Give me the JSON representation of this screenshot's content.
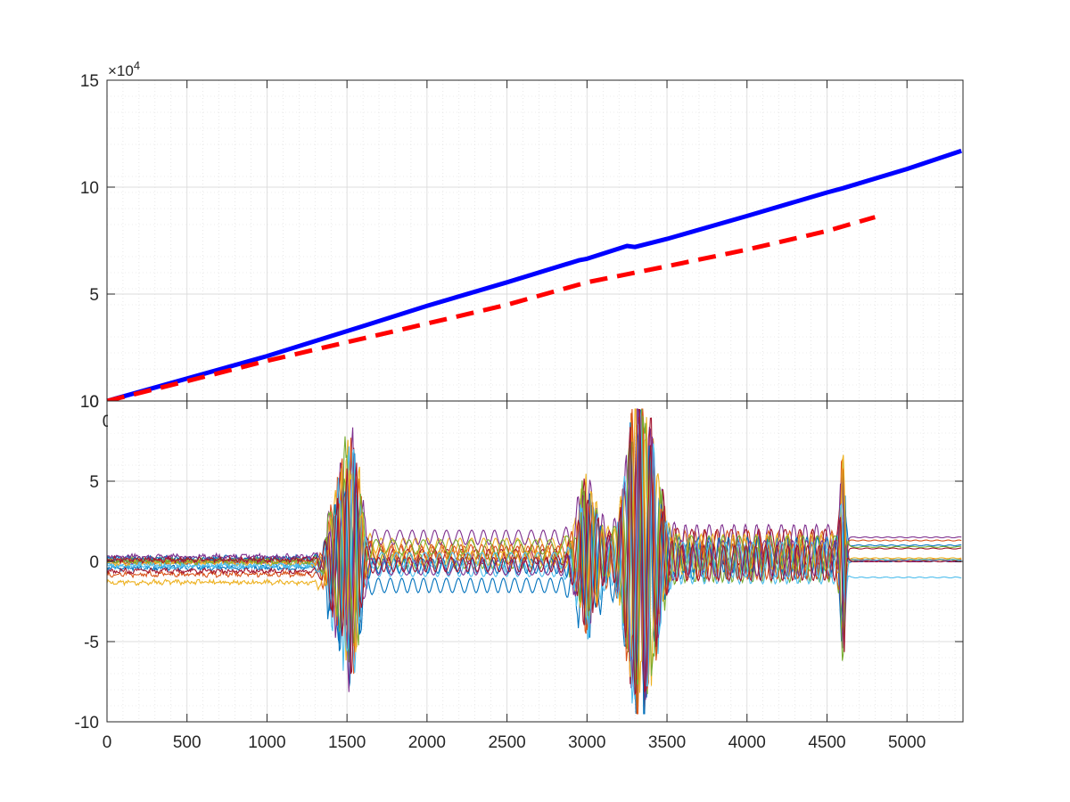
{
  "figure": {
    "background": "#ffffff"
  },
  "chart_data": [
    {
      "type": "line",
      "xlim": [
        0,
        5350
      ],
      "ylim": [
        0,
        150000
      ],
      "yticks": [
        0,
        50000,
        100000,
        150000
      ],
      "ytick_labels": [
        "0",
        "5",
        "10",
        "15"
      ],
      "y_exponent_label": "×10",
      "y_exponent_power": "4",
      "xtick_labels_visible": [
        "0"
      ],
      "grid": true,
      "minor_grid": true,
      "series": [
        {
          "color": "#0000ff",
          "style": "solid",
          "width": 5,
          "x": [
            0,
            500,
            1000,
            1450,
            1600,
            2000,
            2500,
            2950,
            3000,
            3250,
            3300,
            3500,
            4000,
            4500,
            4600,
            5000,
            5340
          ],
          "y": [
            0,
            10500,
            21000,
            31500,
            35000,
            44500,
            55500,
            65800,
            66500,
            72500,
            72000,
            75800,
            86500,
            97500,
            99500,
            108500,
            117000
          ]
        },
        {
          "color": "#ff0000",
          "style": "dashed",
          "width": 5,
          "x": [
            0,
            500,
            1000,
            1500,
            2000,
            2500,
            3000,
            3500,
            4000,
            4500,
            4800
          ],
          "y": [
            0,
            9300,
            18800,
            27500,
            36200,
            45000,
            55500,
            63000,
            70800,
            79500,
            86000
          ]
        }
      ]
    },
    {
      "type": "line",
      "xlim": [
        0,
        5350
      ],
      "ylim": [
        -10,
        10
      ],
      "yticks": [
        -10,
        -5,
        0,
        5,
        10
      ],
      "ytick_labels": [
        "-10",
        "-5",
        "0",
        "5",
        "10"
      ],
      "xticks": [
        0,
        500,
        1000,
        1500,
        2000,
        2500,
        3000,
        3500,
        4000,
        4500,
        5000
      ],
      "xtick_labels": [
        "0",
        "500",
        "1000",
        "1500",
        "2000",
        "2500",
        "3000",
        "3500",
        "4000",
        "4500",
        "5000"
      ],
      "grid": true,
      "minor_grid": true,
      "series_colors": [
        "#0072bd",
        "#d95319",
        "#edb120",
        "#7e2f8e",
        "#77ac30",
        "#4dbeee",
        "#a2142f",
        "#0072bd",
        "#d95319",
        "#edb120",
        "#7e2f8e",
        "#77ac30",
        "#4dbeee",
        "#a2142f"
      ],
      "series_offsets": [
        {
          "seg": [
            -0.4,
            -1.5,
            -1.0,
            0.0,
            1.0
          ],
          "end": 1.0
        },
        {
          "seg": [
            -0.8,
            0.5,
            0.3,
            0.8,
            1.3
          ],
          "end": 1.3
        },
        {
          "seg": [
            -1.3,
            1.0,
            0.8,
            0.3,
            0.1
          ],
          "end": 0.1
        },
        {
          "seg": [
            0.0,
            1.5,
            1.0,
            1.2,
            1.5
          ],
          "end": 1.5
        },
        {
          "seg": [
            0.1,
            0.0,
            0.3,
            -0.2,
            0.1
          ],
          "end": 0.1
        },
        {
          "seg": [
            -0.2,
            -0.5,
            0.0,
            -0.3,
            -1.0
          ],
          "end": -1.0
        },
        {
          "seg": [
            -0.6,
            0.3,
            0.5,
            0.9,
            0.8
          ],
          "end": 0.8
        },
        {
          "seg": [
            0.2,
            -0.3,
            0.1,
            0.4,
            0.0
          ],
          "end": 0.0
        },
        {
          "seg": [
            0.0,
            0.6,
            -0.2,
            0.0,
            0.1
          ],
          "end": 0.1
        },
        {
          "seg": [
            -0.1,
            0.2,
            0.4,
            0.6,
            0.2
          ],
          "end": 0.2
        },
        {
          "seg": [
            0.3,
            -0.4,
            0.2,
            0.2,
            0.0
          ],
          "end": 0.0
        },
        {
          "seg": [
            0.0,
            0.9,
            0.6,
            0.5,
            0.9
          ],
          "end": 0.9
        },
        {
          "seg": [
            -0.3,
            0.1,
            -0.1,
            0.1,
            0.1
          ],
          "end": 0.1
        },
        {
          "seg": [
            0.1,
            -0.2,
            0.3,
            -0.1,
            0.0
          ],
          "end": 0.0
        }
      ],
      "bursts": [
        {
          "x": 1450,
          "amp": 4.5,
          "width": 80
        },
        {
          "x": 1540,
          "amp": 6.5,
          "width": 60
        },
        {
          "x": 3000,
          "amp": 4.0,
          "width": 80
        },
        {
          "x": 3300,
          "amp": 9.0,
          "width": 80
        },
        {
          "x": 3400,
          "amp": 6.0,
          "width": 80
        },
        {
          "x": 4600,
          "amp": 6.0,
          "width": 20
        }
      ]
    }
  ]
}
